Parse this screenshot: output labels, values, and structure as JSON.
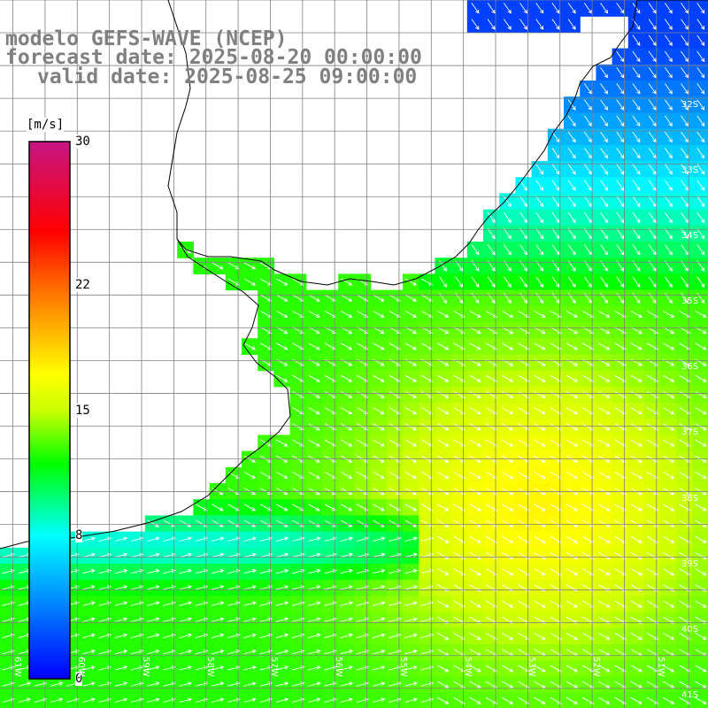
{
  "title": {
    "line1": "modelo GEFS-WAVE (NCEP)",
    "line2": "forecast date: 2025-08-20 00:00:00",
    "line3": "valid date: 2025-08-25 09:00:00"
  },
  "colorbar": {
    "unit": "[m/s]",
    "min": 0,
    "max": 30,
    "ticks": [
      "30",
      "22",
      "15",
      "8",
      "0"
    ],
    "tick_values": [
      30,
      22,
      15,
      8,
      0
    ],
    "stops": [
      {
        "v": 0,
        "c": "#0000ff"
      },
      {
        "v": 8,
        "c": "#00ffff"
      },
      {
        "v": 12,
        "c": "#00ff00"
      },
      {
        "v": 15,
        "c": "#ccff00"
      },
      {
        "v": 17,
        "c": "#ffff00"
      },
      {
        "v": 22,
        "c": "#ff6600"
      },
      {
        "v": 25,
        "c": "#ff0000"
      },
      {
        "v": 30,
        "c": "#c71585"
      }
    ]
  },
  "map": {
    "lon_range": [
      -61.2,
      -50.2
    ],
    "lat_range": [
      -41.3,
      -30.5
    ],
    "lon_ticks": [
      "61W",
      "60W",
      "59W",
      "58W",
      "57W",
      "56W",
      "55W",
      "54W",
      "53W",
      "52W",
      "51W"
    ],
    "lon_tick_values": [
      -61,
      -60,
      -59,
      -58,
      -57,
      -56,
      -55,
      -54,
      -53,
      -52,
      -51
    ],
    "lat_ticks": [
      "32S",
      "33S",
      "34S",
      "35S",
      "36S",
      "37S",
      "38S",
      "39S",
      "40S",
      "41S"
    ],
    "lat_tick_values": [
      -32,
      -33,
      -34,
      -35,
      -36,
      -37,
      -38,
      -39,
      -40,
      -41
    ],
    "grid": true,
    "wind_direction_deg": 300,
    "colors": {
      "land": "#ffffff",
      "coast": "#000000",
      "grid": "#808080",
      "arrows": "#ffffff"
    }
  }
}
